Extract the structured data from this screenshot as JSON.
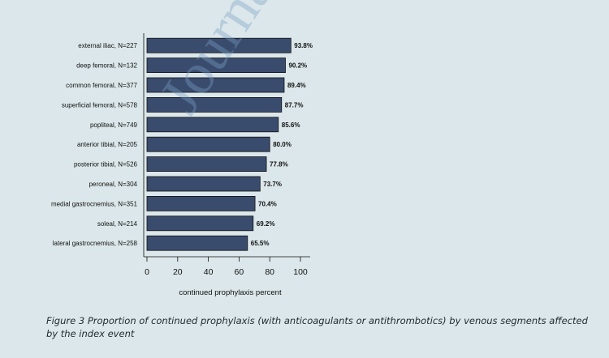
{
  "page_fragment": ".",
  "watermark": "Journal P",
  "caption": "Figure 3 Proportion of continued prophylaxis (with anticoagulants or antithrombotics) by venous segments affected by the index event",
  "colors": {
    "bar": "#3a4c6e",
    "bar_stroke": "#111111",
    "axis": "#111111",
    "chart_bg": "#ffffff"
  },
  "chart_data": {
    "type": "bar",
    "orientation": "horizontal",
    "categories": [
      "external iliac, N=227",
      "deep femoral, N=132",
      "common femoral, N=377",
      "superficial femoral, N=578",
      "popliteal, N=749",
      "anterior tibial, N=205",
      "posterior tibial, N=526",
      "peroneal, N=304",
      "medial gastrocnemius, N=351",
      "soleal, N=214",
      "lateral gastrocnemius, N=258"
    ],
    "values": [
      93.8,
      90.2,
      89.4,
      87.7,
      85.6,
      80.0,
      77.8,
      73.7,
      70.4,
      69.2,
      65.5
    ],
    "data_labels": [
      "93.8%",
      "90.2%",
      "89.4%",
      "87.7%",
      "85.6%",
      "80.0%",
      "77.8%",
      "73.7%",
      "70.4%",
      "69.2%",
      "65.5%"
    ],
    "xlabel": "continued prophylaxis percent",
    "ylabel": "",
    "xticks": [
      "0",
      "20",
      "40",
      "60",
      "80",
      "100"
    ],
    "xlim": [
      0,
      100
    ],
    "grid": false,
    "legend": "none"
  }
}
